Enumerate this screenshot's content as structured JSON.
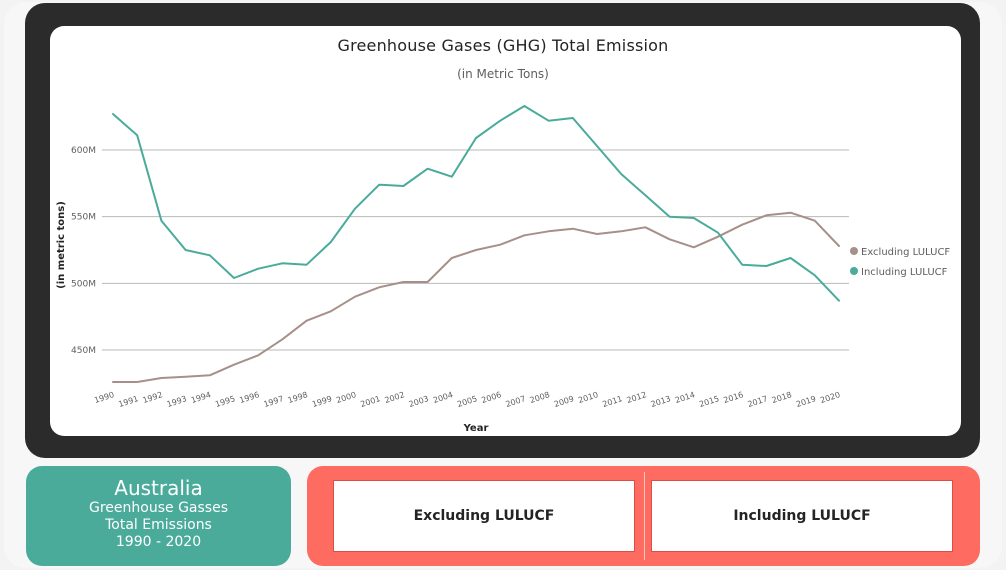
{
  "chart_data": {
    "type": "line",
    "title": "Greenhouse Gases (GHG) Total Emission",
    "subtitle": "(in Metric Tons)",
    "xlabel": "Year",
    "ylabel": "(in metric tons)",
    "x": [
      "1990",
      "1991",
      "1992",
      "1993",
      "1994",
      "1995",
      "1996",
      "1997",
      "1998",
      "1999",
      "2000",
      "2001",
      "2002",
      "2003",
      "2004",
      "2005",
      "2006",
      "2007",
      "2008",
      "2009",
      "2010",
      "2011",
      "2012",
      "2013",
      "2014",
      "2015",
      "2016",
      "2017",
      "2018",
      "2019",
      "2020"
    ],
    "y_ticks": [
      450,
      500,
      550,
      600
    ],
    "y_tick_labels": [
      "450M",
      "500M",
      "550M",
      "600M"
    ],
    "ylim": [
      425,
      633
    ],
    "grid": true,
    "legend_position": "right",
    "series": [
      {
        "name": "Excluding LULUCF",
        "color": "#a69089",
        "values": [
          426,
          426,
          429,
          430,
          431,
          439,
          446,
          458,
          472,
          479,
          490,
          497,
          501,
          501,
          519,
          525,
          529,
          536,
          539,
          541,
          537,
          539,
          542,
          533,
          527,
          535,
          544,
          551,
          553,
          547,
          528
        ]
      },
      {
        "name": "Including LULUCF",
        "color": "#4aab9b",
        "values": [
          627,
          611,
          547,
          525,
          521,
          504,
          511,
          515,
          514,
          531,
          556,
          574,
          573,
          586,
          580,
          609,
          622,
          633,
          622,
          624,
          603,
          582,
          566,
          550,
          549,
          538,
          514,
          513,
          519,
          506,
          487
        ]
      }
    ]
  },
  "summary_card": {
    "country": "Australia",
    "line1": "Greenhouse Gasses",
    "line2": "Total Emissions",
    "line3": "1990 - 2020"
  },
  "buttons": {
    "excluding_label": "Excluding LULUCF",
    "including_label": "Including LULUCF"
  }
}
